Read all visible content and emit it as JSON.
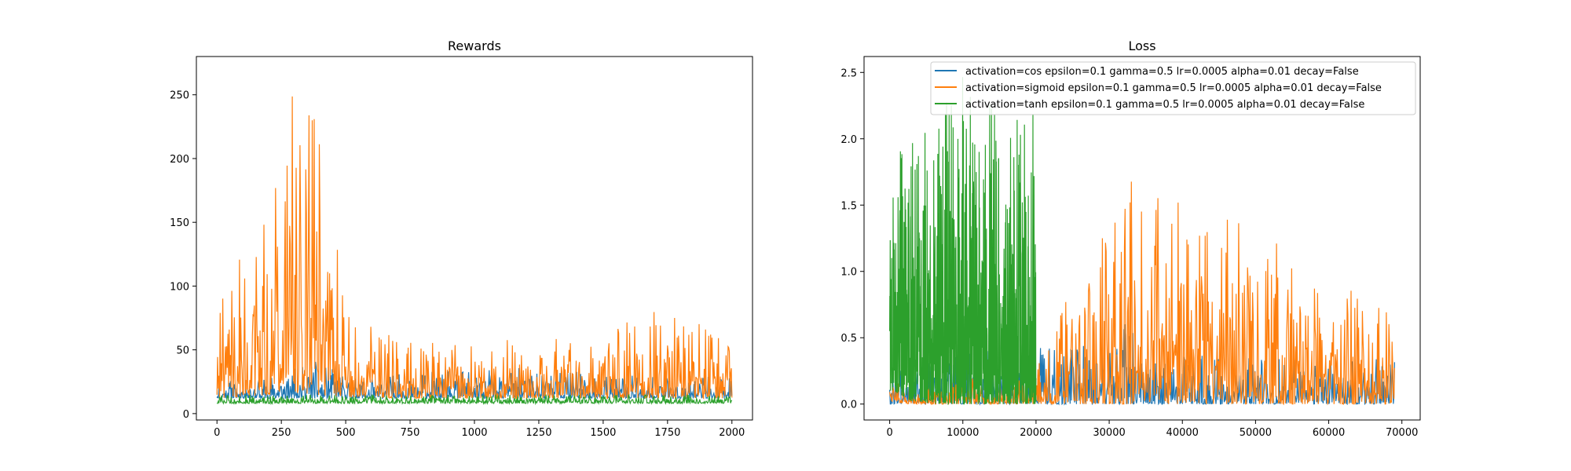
{
  "chart_data": [
    {
      "type": "line",
      "title": "Rewards",
      "xlabel": "",
      "ylabel": "",
      "xlim": [
        -80,
        2080
      ],
      "ylim": [
        -5,
        280
      ],
      "xticks": [
        0,
        250,
        500,
        750,
        1000,
        1250,
        1500,
        1750,
        2000
      ],
      "yticks": [
        0,
        50,
        100,
        150,
        200,
        250
      ],
      "grid": false,
      "legend": "none",
      "x_range": [
        0,
        2000
      ],
      "series": [
        {
          "color": "#1f77b4",
          "stats_by_x": [
            {
              "x": 0,
              "min": 12,
              "max": 25
            },
            {
              "x": 250,
              "min": 12,
              "max": 32
            },
            {
              "x": 400,
              "min": 12,
              "max": 42
            },
            {
              "x": 500,
              "min": 12,
              "max": 28
            },
            {
              "x": 1000,
              "min": 12,
              "max": 35
            },
            {
              "x": 1250,
              "min": 12,
              "max": 38
            },
            {
              "x": 1500,
              "min": 12,
              "max": 30
            },
            {
              "x": 2000,
              "min": 12,
              "max": 30
            }
          ]
        },
        {
          "color": "#ff7f0e",
          "stats_by_x": [
            {
              "x": 0,
              "min": 12,
              "max": 85
            },
            {
              "x": 150,
              "min": 14,
              "max": 160
            },
            {
              "x": 250,
              "min": 15,
              "max": 245
            },
            {
              "x": 275,
              "min": 15,
              "max": 261
            },
            {
              "x": 400,
              "min": 14,
              "max": 269
            },
            {
              "x": 500,
              "min": 13,
              "max": 80
            },
            {
              "x": 750,
              "min": 12,
              "max": 62
            },
            {
              "x": 1000,
              "min": 12,
              "max": 55
            },
            {
              "x": 1250,
              "min": 12,
              "max": 62
            },
            {
              "x": 1500,
              "min": 12,
              "max": 55
            },
            {
              "x": 1640,
              "min": 12,
              "max": 89
            },
            {
              "x": 2000,
              "min": 12,
              "max": 60
            }
          ]
        },
        {
          "color": "#2ca02c",
          "stats_by_x": [
            {
              "x": 0,
              "min": 8,
              "max": 15
            },
            {
              "x": 1000,
              "min": 8,
              "max": 15
            },
            {
              "x": 2000,
              "min": 8,
              "max": 15
            }
          ]
        }
      ]
    },
    {
      "type": "line",
      "title": "Loss",
      "xlabel": "",
      "ylabel": "",
      "xlim": [
        -3500,
        72500
      ],
      "ylim": [
        -0.12,
        2.62
      ],
      "xticks": [
        0,
        10000,
        20000,
        30000,
        40000,
        50000,
        60000,
        70000
      ],
      "yticks": [
        0.0,
        0.5,
        1.0,
        1.5,
        2.0,
        2.5
      ],
      "grid": false,
      "legend": "upper right",
      "series": [
        {
          "name": "activation=cos epsilon=0.1 gamma=0.5 lr=0.0005 alpha=0.01 decay=False",
          "color": "#1f77b4",
          "x_range": [
            0,
            69000
          ],
          "stats_by_x": [
            {
              "x": 0,
              "min": 0.0,
              "max": 0.3
            },
            {
              "x": 20000,
              "min": 0.0,
              "max": 0.49
            },
            {
              "x": 25000,
              "min": 0.0,
              "max": 0.46
            },
            {
              "x": 30000,
              "min": 0.0,
              "max": 0.43
            },
            {
              "x": 32000,
              "min": 0.0,
              "max": 0.66
            },
            {
              "x": 35000,
              "min": 0.0,
              "max": 0.4
            },
            {
              "x": 40000,
              "min": 0.0,
              "max": 0.38
            },
            {
              "x": 69000,
              "min": 0.0,
              "max": 0.35
            }
          ]
        },
        {
          "name": "activation=sigmoid epsilon=0.1 gamma=0.5 lr=0.0005 alpha=0.01 decay=False",
          "color": "#ff7f0e",
          "x_range": [
            0,
            69000
          ],
          "stats_by_x": [
            {
              "x": 0,
              "min": 0.02,
              "max": 0.35
            },
            {
              "x": 3000,
              "min": 0.0,
              "max": 0.1
            },
            {
              "x": 20000,
              "min": 0.0,
              "max": 0.3
            },
            {
              "x": 24000,
              "min": 0.0,
              "max": 0.82
            },
            {
              "x": 33000,
              "min": 0.0,
              "max": 1.77
            },
            {
              "x": 37000,
              "min": 0.0,
              "max": 1.74
            },
            {
              "x": 45000,
              "min": 0.0,
              "max": 1.45
            },
            {
              "x": 52000,
              "min": 0.0,
              "max": 1.3
            },
            {
              "x": 60000,
              "min": 0.0,
              "max": 1.0
            },
            {
              "x": 69000,
              "min": 0.0,
              "max": 0.72
            }
          ]
        },
        {
          "name": "activation=tanh epsilon=0.1 gamma=0.5 lr=0.0005 alpha=0.01 decay=False",
          "color": "#2ca02c",
          "x_range": [
            0,
            20000
          ],
          "stats_by_x": [
            {
              "x": 0,
              "min": 0.1,
              "max": 1.52
            },
            {
              "x": 500,
              "min": 0.1,
              "max": 1.88
            },
            {
              "x": 3000,
              "min": 0.02,
              "max": 2.0
            },
            {
              "x": 7000,
              "min": 0.0,
              "max": 2.23
            },
            {
              "x": 10000,
              "min": 0.0,
              "max": 2.5
            },
            {
              "x": 15000,
              "min": 0.0,
              "max": 2.23
            },
            {
              "x": 20000,
              "min": 0.0,
              "max": 2.2
            }
          ]
        }
      ]
    }
  ]
}
